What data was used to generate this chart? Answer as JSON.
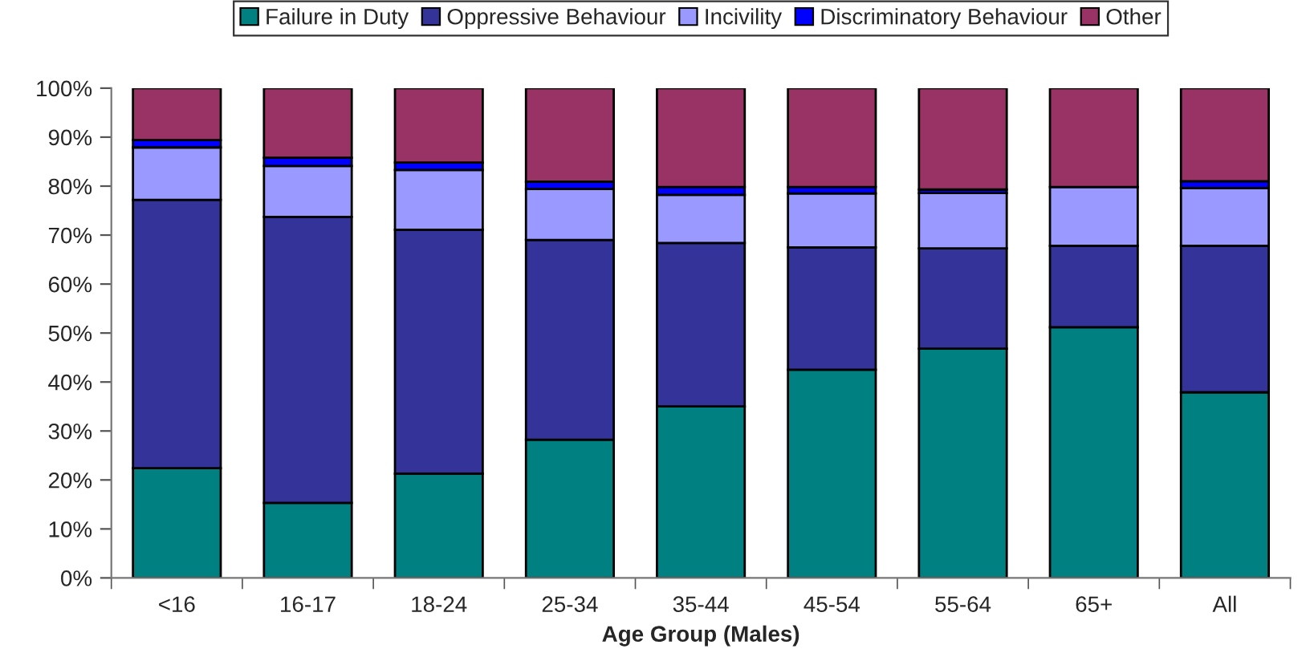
{
  "chart_data": {
    "type": "bar",
    "stacked": true,
    "xlabel": "Age Group (Males)",
    "categories": [
      "<16",
      "16-17",
      "18-24",
      "25-34",
      "35-44",
      "45-54",
      "55-64",
      "65+",
      "All"
    ],
    "series": [
      {
        "name": "Failure in Duty",
        "color": "#008080",
        "values": [
          22.4,
          15.3,
          21.3,
          28.2,
          35.0,
          42.5,
          46.8,
          51.2,
          37.9
        ]
      },
      {
        "name": "Oppressive Behaviour",
        "color": "#333399",
        "values": [
          54.8,
          58.4,
          49.8,
          40.8,
          33.4,
          25.0,
          20.5,
          16.6,
          29.9
        ]
      },
      {
        "name": "Incivility",
        "color": "#9999ff",
        "values": [
          10.7,
          10.4,
          12.2,
          10.4,
          9.8,
          11.0,
          11.3,
          12.0,
          11.8
        ]
      },
      {
        "name": "Discriminatory Behaviour",
        "color": "#0000ff",
        "values": [
          1.5,
          1.7,
          1.5,
          1.5,
          1.6,
          1.3,
          0.7,
          null,
          1.4
        ]
      },
      {
        "name": "Other",
        "color": "#993366",
        "values": [
          10.6,
          14.2,
          15.2,
          19.1,
          20.2,
          20.2,
          20.7,
          20.2,
          19.0
        ]
      }
    ],
    "ylim": [
      0,
      100
    ],
    "yticks": [
      {
        "value": 0,
        "label": "0%"
      },
      {
        "value": 10,
        "label": "10%"
      },
      {
        "value": 20,
        "label": "20%"
      },
      {
        "value": 30,
        "label": "30%"
      },
      {
        "value": 40,
        "label": "40%"
      },
      {
        "value": 50,
        "label": "50%"
      },
      {
        "value": 60,
        "label": "60%"
      },
      {
        "value": 70,
        "label": "70%"
      },
      {
        "value": 80,
        "label": "80%"
      },
      {
        "value": 90,
        "label": "90%"
      },
      {
        "value": 100,
        "label": "100%"
      }
    ],
    "grid": false,
    "legend": "top"
  }
}
